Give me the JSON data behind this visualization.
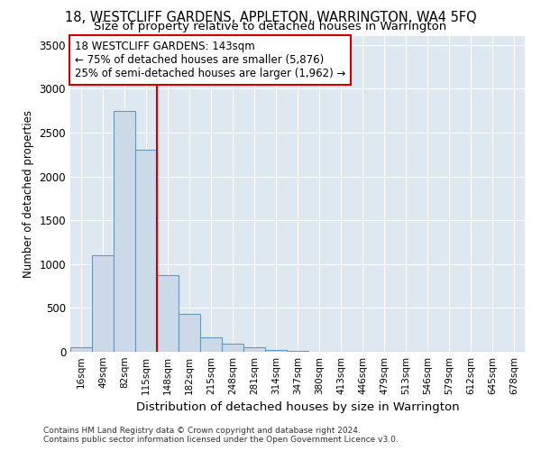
{
  "title": "18, WESTCLIFF GARDENS, APPLETON, WARRINGTON, WA4 5FQ",
  "subtitle": "Size of property relative to detached houses in Warrington",
  "xlabel": "Distribution of detached houses by size in Warrington",
  "ylabel": "Number of detached properties",
  "categories": [
    "16sqm",
    "49sqm",
    "82sqm",
    "115sqm",
    "148sqm",
    "182sqm",
    "215sqm",
    "248sqm",
    "281sqm",
    "314sqm",
    "347sqm",
    "380sqm",
    "413sqm",
    "446sqm",
    "479sqm",
    "513sqm",
    "546sqm",
    "579sqm",
    "612sqm",
    "645sqm",
    "678sqm"
  ],
  "values": [
    50,
    1100,
    2750,
    2300,
    870,
    430,
    165,
    90,
    50,
    25,
    10,
    5,
    2,
    1,
    0,
    0,
    0,
    0,
    0,
    0,
    0
  ],
  "bar_color": "#ccd9e8",
  "bar_edge_color": "#6699bb",
  "vline_x_index": 4,
  "vline_color": "#cc0000",
  "annotation_text": "18 WESTCLIFF GARDENS: 143sqm\n← 75% of detached houses are smaller (5,876)\n25% of semi-detached houses are larger (1,962) →",
  "annotation_box_color": "#ffffff",
  "annotation_box_edge_color": "#cc0000",
  "ylim": [
    0,
    3600
  ],
  "yticks": [
    0,
    500,
    1000,
    1500,
    2000,
    2500,
    3000,
    3500
  ],
  "background_color": "#dde8f0",
  "footer_line1": "Contains HM Land Registry data © Crown copyright and database right 2024.",
  "footer_line2": "Contains public sector information licensed under the Open Government Licence v3.0.",
  "title_fontsize": 10.5,
  "subtitle_fontsize": 9.5,
  "annotation_fontsize": 8.5
}
